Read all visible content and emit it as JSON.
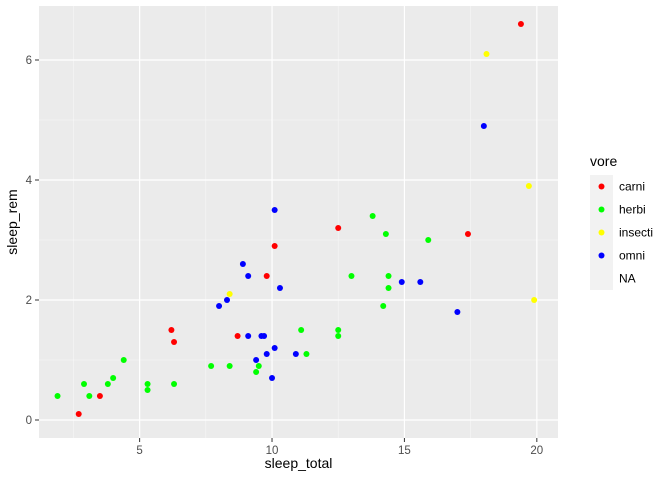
{
  "chart_data": {
    "type": "scatter",
    "xlabel": "sleep_total",
    "ylabel": "sleep_rem",
    "xlim": [
      1.2,
      20.8
    ],
    "ylim": [
      -0.3,
      6.9
    ],
    "x_ticks": [
      5,
      10,
      15,
      20
    ],
    "y_ticks": [
      0,
      2,
      4,
      6
    ],
    "grid": true,
    "legend": {
      "title": "vore",
      "position": "right",
      "entries": [
        {
          "label": "carni",
          "color": "#ff0000"
        },
        {
          "label": "herbi",
          "color": "#00ff00"
        },
        {
          "label": "insecti",
          "color": "#ffff00"
        },
        {
          "label": "omni",
          "color": "#0000ff"
        },
        {
          "label": "NA",
          "color": ""
        }
      ]
    },
    "series": [
      {
        "name": "carni",
        "color": "#ff0000",
        "points": [
          [
            2.7,
            0.1
          ],
          [
            3.5,
            0.4
          ],
          [
            6.2,
            1.5
          ],
          [
            6.3,
            1.3
          ],
          [
            8.7,
            1.4
          ],
          [
            9.8,
            2.4
          ],
          [
            10.1,
            2.9
          ],
          [
            12.5,
            3.2
          ],
          [
            17.4,
            3.1
          ],
          [
            19.4,
            6.6
          ]
        ]
      },
      {
        "name": "herbi",
        "color": "#00ff00",
        "points": [
          [
            1.9,
            0.4
          ],
          [
            2.9,
            0.6
          ],
          [
            3.1,
            0.4
          ],
          [
            3.8,
            0.6
          ],
          [
            4.0,
            0.7
          ],
          [
            4.4,
            1.0
          ],
          [
            5.3,
            0.6
          ],
          [
            5.3,
            0.5
          ],
          [
            6.3,
            0.6
          ],
          [
            7.7,
            0.9
          ],
          [
            8.4,
            0.9
          ],
          [
            9.4,
            0.8
          ],
          [
            9.5,
            0.9
          ],
          [
            11.1,
            1.5
          ],
          [
            11.3,
            1.1
          ],
          [
            12.5,
            1.5
          ],
          [
            12.5,
            1.4
          ],
          [
            13.0,
            2.4
          ],
          [
            13.8,
            3.4
          ],
          [
            14.2,
            1.9
          ],
          [
            14.3,
            3.1
          ],
          [
            14.4,
            2.4
          ],
          [
            14.4,
            2.2
          ],
          [
            15.9,
            3.0
          ]
        ]
      },
      {
        "name": "insecti",
        "color": "#ffff00",
        "points": [
          [
            8.4,
            2.1
          ],
          [
            18.1,
            6.1
          ],
          [
            19.7,
            3.9
          ],
          [
            19.9,
            2.0
          ]
        ]
      },
      {
        "name": "omni",
        "color": "#0000ff",
        "points": [
          [
            8.0,
            1.9
          ],
          [
            8.3,
            2.0
          ],
          [
            8.9,
            2.6
          ],
          [
            9.1,
            2.4
          ],
          [
            9.1,
            1.4
          ],
          [
            9.4,
            1.0
          ],
          [
            9.6,
            1.4
          ],
          [
            9.7,
            1.4
          ],
          [
            9.8,
            1.1
          ],
          [
            10.0,
            0.7
          ],
          [
            10.1,
            3.5
          ],
          [
            10.1,
            1.2
          ],
          [
            10.3,
            2.2
          ],
          [
            10.9,
            1.1
          ],
          [
            14.9,
            2.3
          ],
          [
            15.6,
            2.3
          ],
          [
            17.0,
            1.8
          ],
          [
            18.0,
            4.9
          ]
        ]
      }
    ]
  }
}
